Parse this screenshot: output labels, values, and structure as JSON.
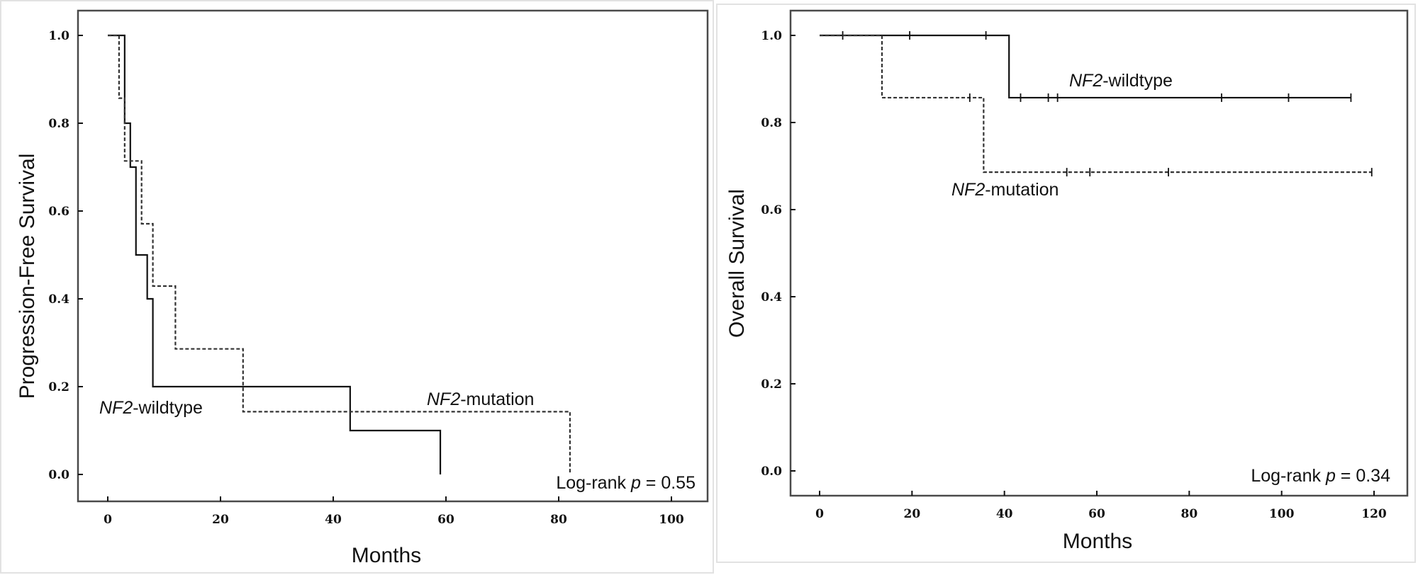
{
  "chart_data": [
    {
      "type": "line",
      "title": "",
      "xlabel": "Months",
      "ylabel": "Progression-Free Survival",
      "xlim": [
        0,
        100
      ],
      "ylim": [
        0,
        1
      ],
      "xticks": [
        "0",
        "20",
        "40",
        "60",
        "80",
        "100"
      ],
      "yticks": [
        "0.0",
        "0.2",
        "0.4",
        "0.6",
        "0.8",
        "1.0"
      ],
      "annotation": {
        "prefix": "Log-rank ",
        "p": "p",
        "suffix": " = 0.55"
      },
      "series": [
        {
          "name": "NF2-wildtype",
          "name_italic": "NF2",
          "name_rest": "-wildtype",
          "style": "solid",
          "steps": [
            [
              0,
              1.0
            ],
            [
              3,
              0.8
            ],
            [
              4,
              0.7
            ],
            [
              5,
              0.5
            ],
            [
              7,
              0.4
            ],
            [
              8,
              0.2
            ],
            [
              43,
              0.1
            ],
            [
              59,
              0.0
            ]
          ],
          "end_x": 59,
          "censored": []
        },
        {
          "name": "NF2-mutation",
          "name_italic": "NF2",
          "name_rest": "-mutation",
          "style": "dashed",
          "steps": [
            [
              0,
              1.0
            ],
            [
              2,
              0.857
            ],
            [
              3,
              0.714
            ],
            [
              6,
              0.571
            ],
            [
              8,
              0.429
            ],
            [
              12,
              0.286
            ],
            [
              24,
              0.143
            ],
            [
              82,
              0.0
            ]
          ],
          "end_x": 82,
          "censored": []
        }
      ]
    },
    {
      "type": "line",
      "title": "",
      "xlabel": "Months",
      "ylabel": "Overall Survival",
      "xlim": [
        0,
        120
      ],
      "ylim": [
        0,
        1
      ],
      "xticks": [
        "0",
        "20",
        "40",
        "60",
        "80",
        "100",
        "120"
      ],
      "yticks": [
        "0.0",
        "0.2",
        "0.4",
        "0.6",
        "0.8",
        "1.0"
      ],
      "annotation": {
        "prefix": "Log-rank ",
        "p": "p",
        "suffix": " = 0.34"
      },
      "series": [
        {
          "name": "NF2-wildtype",
          "name_italic": "NF2",
          "name_rest": "-wildtype",
          "style": "solid",
          "steps": [
            [
              0,
              1.0
            ],
            [
              41,
              0.857
            ]
          ],
          "end_x": 115,
          "censored": [
            [
              5,
              1.0
            ],
            [
              19.5,
              1.0
            ],
            [
              36,
              1.0
            ],
            [
              43.5,
              0.857
            ],
            [
              49.5,
              0.857
            ],
            [
              51.5,
              0.857
            ],
            [
              87,
              0.857
            ],
            [
              101.5,
              0.857
            ],
            [
              115,
              0.857
            ]
          ]
        },
        {
          "name": "NF2-mutation",
          "name_italic": "NF2",
          "name_rest": "-mutation",
          "style": "dashed",
          "steps": [
            [
              0,
              1.0
            ],
            [
              13.5,
              0.857
            ],
            [
              35.5,
              0.686
            ]
          ],
          "end_x": 119.5,
          "censored": [
            [
              32.5,
              0.857
            ],
            [
              53.5,
              0.686
            ],
            [
              58.5,
              0.686
            ],
            [
              75.5,
              0.686
            ],
            [
              119.5,
              0.686
            ]
          ]
        }
      ]
    }
  ]
}
